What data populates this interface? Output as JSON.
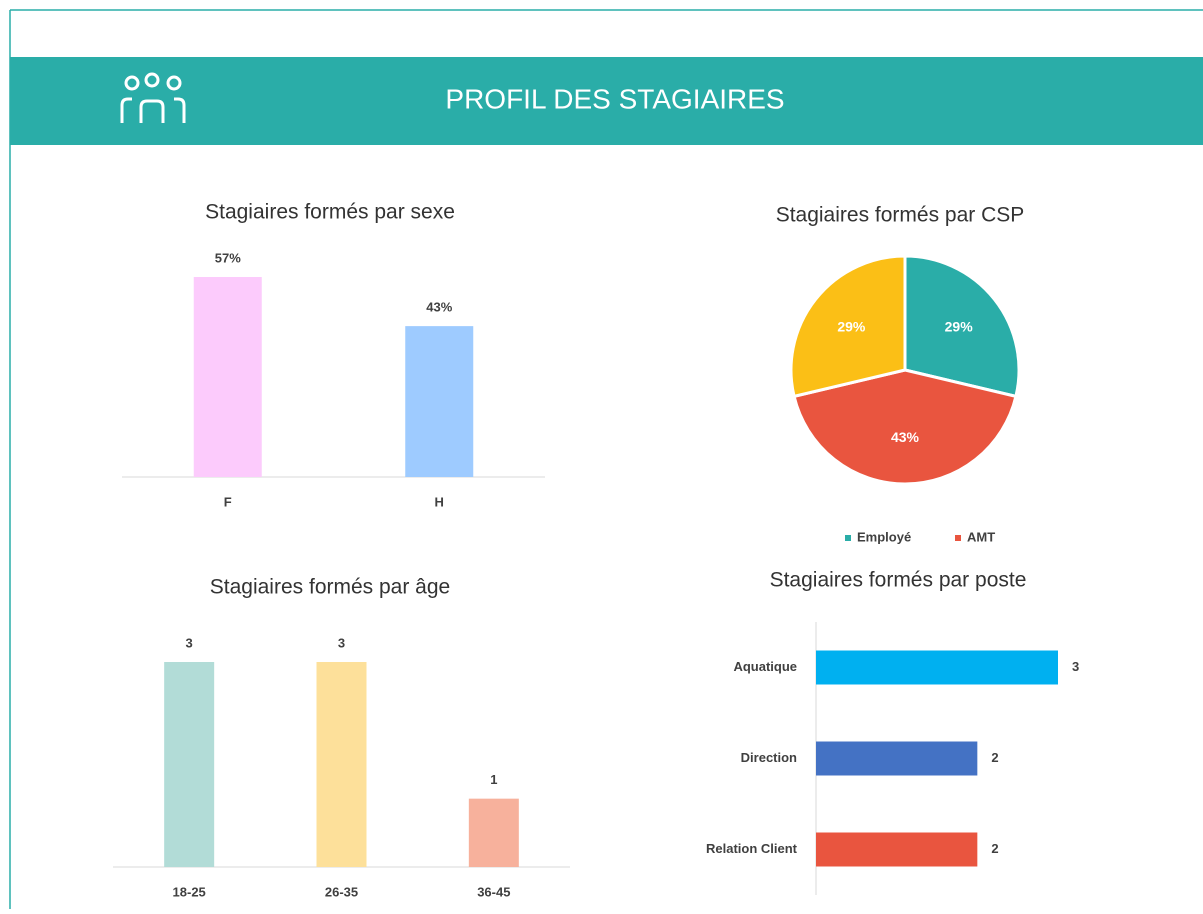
{
  "header": {
    "title": "PROFIL DES STAGIAIRES"
  },
  "chart_data": [
    {
      "type": "bar",
      "title": "Stagiaires formés par sexe",
      "categories": [
        "F",
        "H"
      ],
      "values": [
        57,
        43
      ],
      "value_labels": [
        "57%",
        "43%"
      ],
      "colors": [
        "#fccbfc",
        "#9ecbff"
      ]
    },
    {
      "type": "pie",
      "title": "Stagiaires formés par CSP",
      "categories": [
        "Employé",
        "AMT",
        null
      ],
      "values": [
        29,
        43,
        29
      ],
      "value_labels": [
        "29%",
        "43%",
        "29%"
      ],
      "colors": [
        "#2aada8",
        "#e9553f",
        "#fbbf16"
      ]
    },
    {
      "type": "bar",
      "title": "Stagiaires formés par âge",
      "categories": [
        "18-25",
        "26-35",
        "36-45"
      ],
      "values": [
        3,
        3,
        1
      ],
      "colors": [
        "#b2dcd7",
        "#fde09a",
        "#f7b19c"
      ]
    },
    {
      "type": "barh",
      "title": "Stagiaires formés par poste",
      "categories": [
        "Aquatique",
        "Direction",
        "Relation Client"
      ],
      "values": [
        3,
        2,
        2
      ],
      "colors": [
        "#00b0f0",
        "#4472c4",
        "#e9553f"
      ]
    }
  ]
}
